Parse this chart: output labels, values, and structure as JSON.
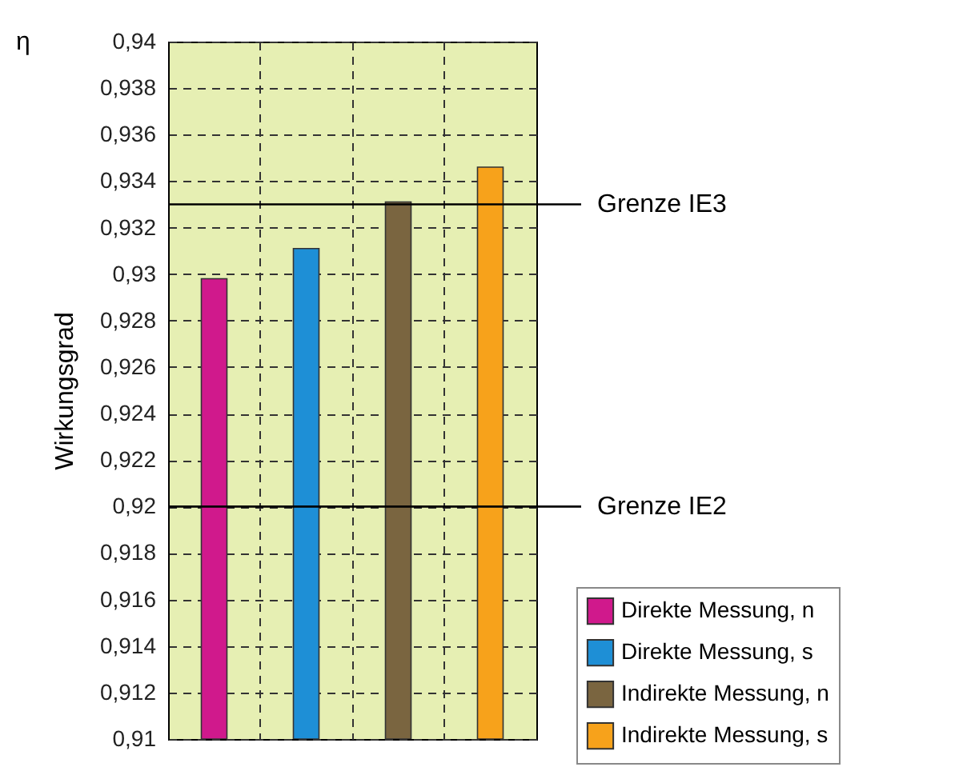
{
  "chart_data": {
    "type": "bar",
    "ylabel": "Wirkungsgrad",
    "annotations": [
      "η"
    ],
    "categories": [
      null,
      null,
      null,
      null
    ],
    "series": [
      {
        "name": "Direkte Messung, n",
        "color": "#d0198c",
        "values": [
          0.9298,
          null,
          null,
          null
        ]
      },
      {
        "name": "Direkte Messung, s",
        "color": "#1e8fd6",
        "values": [
          null,
          0.9311,
          null,
          null
        ]
      },
      {
        "name": "Indirekte Messung, n",
        "color": "#7a6540",
        "values": [
          null,
          null,
          0.9331,
          null
        ]
      },
      {
        "name": "Indirekte Messung, s",
        "color": "#f7a21b",
        "values": [
          null,
          null,
          null,
          0.9346
        ]
      }
    ],
    "ylim": [
      0.91,
      0.94
    ],
    "yticks": [
      {
        "value": 0.91,
        "label": "0,91"
      },
      {
        "value": 0.912,
        "label": "0,912"
      },
      {
        "value": 0.914,
        "label": "0,914"
      },
      {
        "value": 0.916,
        "label": "0,916"
      },
      {
        "value": 0.918,
        "label": "0,918"
      },
      {
        "value": 0.92,
        "label": "0,92"
      },
      {
        "value": 0.922,
        "label": "0,922"
      },
      {
        "value": 0.924,
        "label": "0,924"
      },
      {
        "value": 0.926,
        "label": "0,926"
      },
      {
        "value": 0.928,
        "label": "0,928"
      },
      {
        "value": 0.93,
        "label": "0,93"
      },
      {
        "value": 0.932,
        "label": "0,932"
      },
      {
        "value": 0.934,
        "label": "0,934"
      },
      {
        "value": 0.936,
        "label": "0,936"
      },
      {
        "value": 0.938,
        "label": "0,938"
      },
      {
        "value": 0.94,
        "label": "0,94"
      }
    ],
    "ref_lines": [
      {
        "axis": "y",
        "value": 0.933,
        "label": "Grenze IE3",
        "color": "#000000"
      },
      {
        "axis": "y",
        "value": 0.92,
        "label": "Grenze IE2",
        "color": "#000000"
      }
    ],
    "grid": true,
    "legend": "bottom right"
  }
}
